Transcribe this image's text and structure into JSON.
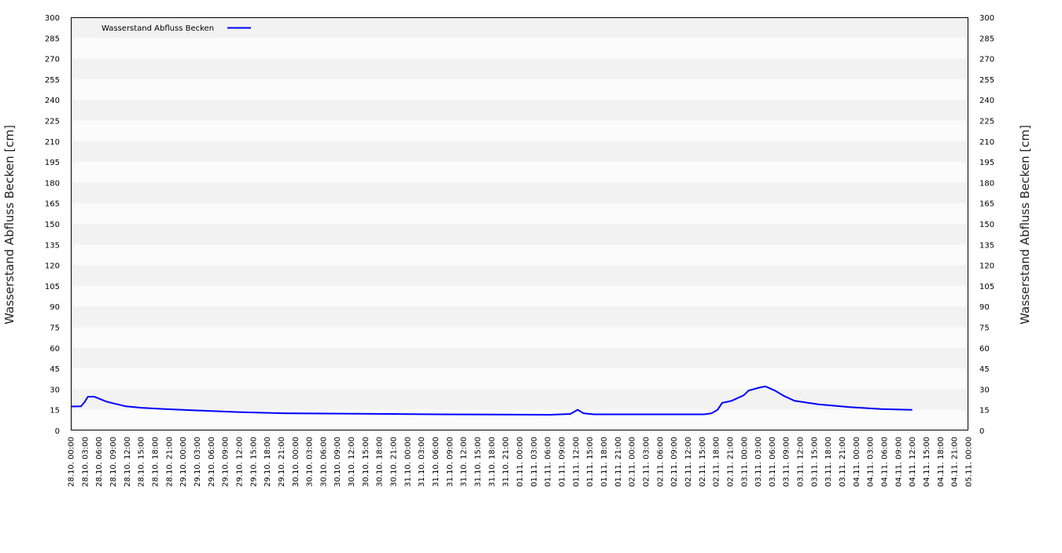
{
  "chart_data": {
    "type": "line",
    "title": "",
    "ylabel_left": "Wasserstand Abfluss Becken [cm]",
    "ylabel_right": "Wasserstand Abfluss Becken [cm]",
    "xlabel": "",
    "ylim": [
      0,
      300
    ],
    "yticks": [
      0,
      15,
      30,
      45,
      60,
      75,
      90,
      105,
      120,
      135,
      150,
      165,
      180,
      195,
      210,
      225,
      240,
      255,
      270,
      285,
      300
    ],
    "xlim": [
      "28.10. 00:00",
      "05.11. 00:00"
    ],
    "xtick_labels": [
      "28.10. 00:00",
      "28.10. 03:00",
      "28.10. 06:00",
      "28.10. 09:00",
      "28.10. 12:00",
      "28.10. 15:00",
      "28.10. 18:00",
      "28.10. 21:00",
      "29.10. 00:00",
      "29.10. 03:00",
      "29.10. 06:00",
      "29.10. 09:00",
      "29.10. 12:00",
      "29.10. 15:00",
      "29.10. 18:00",
      "29.10. 21:00",
      "30.10. 00:00",
      "30.10. 03:00",
      "30.10. 06:00",
      "30.10. 09:00",
      "30.10. 12:00",
      "30.10. 15:00",
      "30.10. 18:00",
      "30.10. 21:00",
      "31.10. 00:00",
      "31.10. 03:00",
      "31.10. 06:00",
      "31.10. 09:00",
      "31.10. 12:00",
      "31.10. 15:00",
      "31.10. 18:00",
      "31.10. 21:00",
      "01.11. 00:00",
      "01.11. 03:00",
      "01.11. 06:00",
      "01.11. 09:00",
      "01.11. 12:00",
      "01.11. 15:00",
      "01.11. 18:00",
      "01.11. 21:00",
      "02.11. 00:00",
      "02.11. 03:00",
      "02.11. 06:00",
      "02.11. 09:00",
      "02.11. 12:00",
      "02.11. 15:00",
      "02.11. 18:00",
      "02.11. 21:00",
      "03.11. 00:00",
      "03.11. 03:00",
      "03.11. 06:00",
      "03.11. 09:00",
      "03.11. 12:00",
      "03.11. 15:00",
      "03.11. 18:00",
      "03.11. 21:00",
      "04.11. 00:00",
      "04.11. 03:00",
      "04.11. 06:00",
      "04.11. 09:00",
      "04.11. 12:00",
      "04.11. 15:00",
      "04.11. 18:00",
      "04.11. 21:00",
      "05.11. 00:00"
    ],
    "grid": "horizontal alternating bands",
    "legend_position": "top-left",
    "series": [
      {
        "name": "Wasserstand Abfluss Becken",
        "color": "#0000ff",
        "points": [
          [
            "28.10. 00:00",
            17.4
          ],
          [
            "28.10. 02:10",
            17.5
          ],
          [
            "28.10. 02:55",
            20.5
          ],
          [
            "28.10. 03:40",
            24.5
          ],
          [
            "28.10. 05:00",
            24.5
          ],
          [
            "28.10. 06:10",
            23
          ],
          [
            "28.10. 07:35",
            21
          ],
          [
            "28.10. 09:20",
            19.5
          ],
          [
            "28.10. 11:50",
            17.5
          ],
          [
            "28.10. 15:05",
            16.5
          ],
          [
            "28.10. 20:10",
            15.5
          ],
          [
            "29.10. 04:35",
            14.3
          ],
          [
            "29.10. 11:20",
            13.4
          ],
          [
            "29.10. 21:25",
            12.5
          ],
          [
            "30.10. 21:00",
            12
          ],
          [
            "31.10. 07:05",
            11.7
          ],
          [
            "01.11. 06:35",
            11.4
          ],
          [
            "01.11. 10:50",
            12
          ],
          [
            "01.11. 12:25",
            15
          ],
          [
            "01.11. 13:40",
            12.5
          ],
          [
            "01.11. 15:55",
            11.7
          ],
          [
            "02.11. 15:30",
            11.7
          ],
          [
            "02.11. 17:05",
            12.5
          ],
          [
            "02.11. 18:20",
            15
          ],
          [
            "02.11. 19:20",
            20
          ],
          [
            "02.11. 21:20",
            21.5
          ],
          [
            "02.11. 23:55",
            25.5
          ],
          [
            "03.11. 01:00",
            29
          ],
          [
            "03.11. 03:10",
            31
          ],
          [
            "03.11. 04:35",
            32
          ],
          [
            "03.11. 06:35",
            29
          ],
          [
            "03.11. 08:35",
            25
          ],
          [
            "03.11. 10:50",
            21.5
          ],
          [
            "03.11. 15:55",
            19
          ],
          [
            "03.11. 22:35",
            17
          ],
          [
            "04.11. 05:20",
            15.5
          ],
          [
            "04.11. 12:00",
            15
          ]
        ]
      }
    ]
  }
}
